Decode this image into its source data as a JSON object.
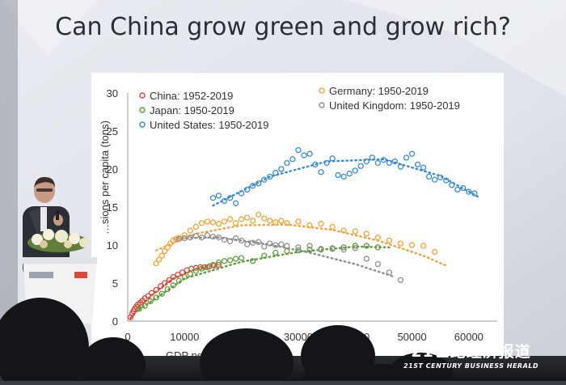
{
  "slide": {
    "title": "Can China grow green and grow rich?"
  },
  "chart_data": {
    "type": "scatter",
    "ylabel": "…sions per capita (tons)",
    "xlabel": "GDP per…",
    "ylim": [
      0,
      30
    ],
    "xlim": [
      0,
      65000
    ],
    "yticks": [
      "0",
      "5",
      "10",
      "15",
      "20",
      "25",
      "30"
    ],
    "xticks": [
      "0",
      "10000",
      "20000",
      "30000",
      "40000",
      "50000",
      "60000"
    ],
    "legend": [
      {
        "label": "China: 1952-2019",
        "color": "#e0453a"
      },
      {
        "label": "Japan: 1950-2019",
        "color": "#5e9d3c"
      },
      {
        "label": "United States: 1950-2019",
        "color": "#3a8ad0"
      },
      {
        "label": "Germany: 1950-2019",
        "color": "#f2a33a"
      },
      {
        "label": "United Kingdom: 1950-2019",
        "color": "#8f8f8f"
      }
    ],
    "series": [
      {
        "name": "China: 1952-2019",
        "color": "#e0453a",
        "x": [
          500,
          800,
          1000,
          1200,
          1500,
          1800,
          2200,
          2600,
          3000,
          3600,
          4200,
          5000,
          5800,
          6500,
          7300,
          8000,
          8800,
          9600,
          10400,
          11200,
          12000,
          12800,
          13600,
          14400,
          15200,
          16000
        ],
        "y": [
          0.5,
          1.0,
          1.3,
          1.6,
          1.9,
          2.2,
          2.4,
          2.7,
          3.0,
          3.3,
          3.7,
          4.1,
          4.6,
          5.0,
          5.4,
          5.8,
          6.1,
          6.4,
          6.7,
          6.9,
          7.0,
          7.1,
          7.1,
          7.2,
          7.3,
          7.4
        ]
      },
      {
        "name": "Japan: 1950-2019",
        "color": "#5e9d3c",
        "x": [
          2000,
          3000,
          4000,
          5000,
          6000,
          7000,
          8000,
          9000,
          10000,
          11000,
          12000,
          13000,
          14000,
          15000,
          16000,
          17000,
          18000,
          19000,
          20000,
          22000,
          24000,
          26000,
          28000,
          30000,
          32000,
          34000,
          36000,
          38000,
          40000,
          42000,
          44000
        ],
        "y": [
          1.6,
          2.0,
          2.6,
          3.1,
          3.6,
          4.2,
          4.7,
          5.3,
          5.8,
          6.2,
          6.6,
          6.9,
          7.1,
          7.4,
          7.7,
          7.9,
          8.0,
          8.2,
          8.3,
          7.9,
          8.6,
          9.0,
          9.2,
          9.3,
          9.4,
          9.4,
          9.5,
          9.7,
          9.9,
          9.9,
          9.7
        ]
      },
      {
        "name": "Germany: 1950-2019",
        "color": "#f2a33a",
        "x": [
          5000,
          5500,
          6000,
          6500,
          7000,
          7500,
          8000,
          8500,
          9000,
          10000,
          11000,
          12000,
          13000,
          14000,
          15000,
          16000,
          17000,
          18000,
          19000,
          20000,
          21000,
          22000,
          23000,
          24000,
          25000,
          26000,
          27000,
          28000,
          30000,
          32000,
          34000,
          36000,
          38000,
          40000,
          42000,
          44000,
          46000,
          48000,
          50000,
          52000,
          54000
        ],
        "y": [
          7.6,
          8.1,
          8.6,
          9.2,
          9.7,
          10.2,
          10.6,
          10.8,
          11.0,
          11.3,
          11.9,
          12.4,
          12.9,
          13.1,
          13.0,
          12.8,
          13.1,
          13.4,
          12.9,
          13.4,
          13.6,
          13.2,
          14.0,
          13.5,
          13.2,
          13.0,
          13.2,
          12.9,
          13.1,
          12.6,
          12.8,
          12.4,
          11.9,
          11.8,
          11.5,
          11.0,
          10.6,
          10.2,
          10.0,
          9.9,
          9.1
        ]
      },
      {
        "name": "United Kingdom: 1950-2019",
        "color": "#8f8f8f",
        "x": [
          9000,
          10000,
          11000,
          12000,
          13000,
          14000,
          15000,
          16000,
          17000,
          18000,
          19000,
          20000,
          21000,
          22000,
          23000,
          24000,
          25000,
          26000,
          27000,
          28000,
          30000,
          32000,
          34000,
          36000,
          38000,
          40000,
          42000,
          44000,
          46000,
          48000
        ],
        "y": [
          10.8,
          10.9,
          11.0,
          11.2,
          11.0,
          11.3,
          11.1,
          11.0,
          10.7,
          10.5,
          10.9,
          10.6,
          10.1,
          10.3,
          10.4,
          9.8,
          10.2,
          10.0,
          10.1,
          9.9,
          9.7,
          9.9,
          9.5,
          9.6,
          9.4,
          9.6,
          8.2,
          7.5,
          6.4,
          5.4
        ]
      },
      {
        "name": "United States: 1950-2019",
        "color": "#3a8ad0",
        "x": [
          15000,
          16000,
          17000,
          18000,
          19000,
          20000,
          21000,
          22000,
          23000,
          24000,
          25000,
          26000,
          27000,
          28000,
          29000,
          30000,
          31000,
          32000,
          33000,
          34000,
          35000,
          36000,
          37000,
          38000,
          39000,
          40000,
          41000,
          42000,
          43000,
          44000,
          45000,
          46000,
          47000,
          48000,
          49000,
          50000,
          51000,
          52000,
          53000,
          54000,
          55000,
          56000,
          57000,
          58000,
          59000,
          60000,
          61000
        ],
        "y": [
          16.2,
          16.5,
          15.8,
          16.2,
          15.5,
          16.8,
          17.3,
          17.8,
          18.1,
          18.6,
          19.0,
          19.5,
          20.0,
          20.8,
          21.3,
          22.5,
          21.8,
          22.0,
          20.6,
          19.6,
          20.8,
          21.4,
          19.2,
          19.0,
          19.4,
          19.8,
          20.4,
          21.0,
          21.5,
          20.8,
          21.2,
          20.8,
          21.0,
          20.3,
          21.5,
          22.0,
          20.6,
          20.2,
          19.0,
          18.6,
          18.9,
          18.5,
          17.9,
          17.3,
          17.5,
          17.0,
          16.8
        ]
      }
    ],
    "trendlines": [
      {
        "name": "China: 1952-2019",
        "color": "#e0453a",
        "x": [
          500,
          4000,
          8000,
          12000,
          16000
        ],
        "y": [
          0.4,
          3.3,
          5.6,
          6.9,
          7.4
        ]
      },
      {
        "name": "Japan: 1950-2019",
        "color": "#5e9d3c",
        "x": [
          2000,
          10000,
          20000,
          30000,
          40000,
          46000
        ],
        "y": [
          1.5,
          5.6,
          7.8,
          9.1,
          9.8,
          9.7
        ]
      },
      {
        "name": "Germany: 1950-2019",
        "color": "#f2a33a",
        "x": [
          5000,
          12000,
          20000,
          28000,
          36000,
          44000,
          52000,
          56000
        ],
        "y": [
          9.3,
          11.5,
          12.6,
          12.7,
          12.0,
          10.6,
          8.6,
          7.3
        ]
      },
      {
        "name": "United Kingdom: 1950-2019",
        "color": "#8f8f8f",
        "x": [
          8000,
          16000,
          24000,
          32000,
          40000,
          47000
        ],
        "y": [
          10.9,
          11.0,
          10.2,
          9.0,
          7.5,
          5.8
        ]
      },
      {
        "name": "United States: 1950-2019",
        "color": "#3a8ad0",
        "x": [
          15000,
          25000,
          35000,
          45000,
          55000,
          62000
        ],
        "y": [
          15.2,
          19.0,
          21.0,
          21.3,
          19.1,
          16.2
        ]
      }
    ]
  },
  "watermark": {
    "cn": "21世纪经济报道",
    "en": "21ST CENTURY BUSINESS HERALD"
  }
}
